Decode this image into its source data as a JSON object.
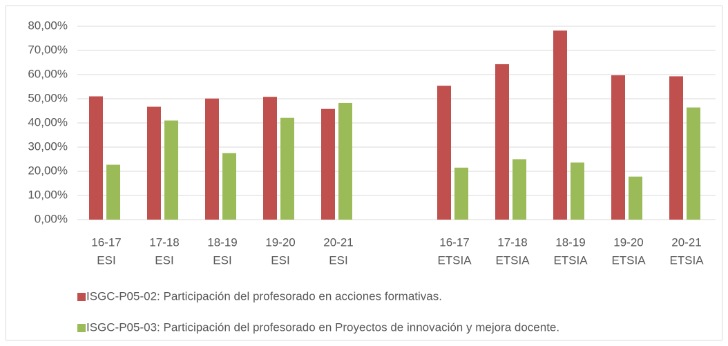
{
  "chart_data": {
    "type": "bar",
    "categories": [
      [
        "16-17",
        "ESI"
      ],
      [
        "17-18",
        "ESI"
      ],
      [
        "18-19",
        "ESI"
      ],
      [
        "19-20",
        "ESI"
      ],
      [
        "20-21",
        "ESI"
      ],
      null,
      [
        "16-17",
        "ETSIA"
      ],
      [
        "17-18",
        "ETSIA"
      ],
      [
        "18-19",
        "ETSIA"
      ],
      [
        "19-20",
        "ETSIA"
      ],
      [
        "20-21",
        "ETSIA"
      ]
    ],
    "series": [
      {
        "name": "ISGC-P05-02: Participación del profesorado en acciones formativas.",
        "color": "#c0504d",
        "values": [
          51.0,
          46.7,
          50.1,
          50.8,
          45.8,
          null,
          55.4,
          64.3,
          78.2,
          59.7,
          59.3
        ]
      },
      {
        "name": "ISGC-P05-03: Participación del profesorado en Proyectos de innovación y mejora docente.",
        "color": "#9bbb59",
        "values": [
          22.7,
          41.0,
          27.5,
          42.1,
          48.3,
          null,
          21.5,
          25.0,
          23.6,
          17.8,
          46.4
        ]
      }
    ],
    "ylim": [
      0,
      80
    ],
    "yticks": [
      {
        "value": 0,
        "label": "0,00%"
      },
      {
        "value": 10,
        "label": "10,00%"
      },
      {
        "value": 20,
        "label": "20,00%"
      },
      {
        "value": 30,
        "label": "30,00%"
      },
      {
        "value": 40,
        "label": "40,00%"
      },
      {
        "value": 50,
        "label": "50,00%"
      },
      {
        "value": 60,
        "label": "60,00%"
      },
      {
        "value": 70,
        "label": "70,00%"
      },
      {
        "value": 80,
        "label": "80,00%"
      }
    ],
    "grid": true,
    "legend": "bottom"
  }
}
